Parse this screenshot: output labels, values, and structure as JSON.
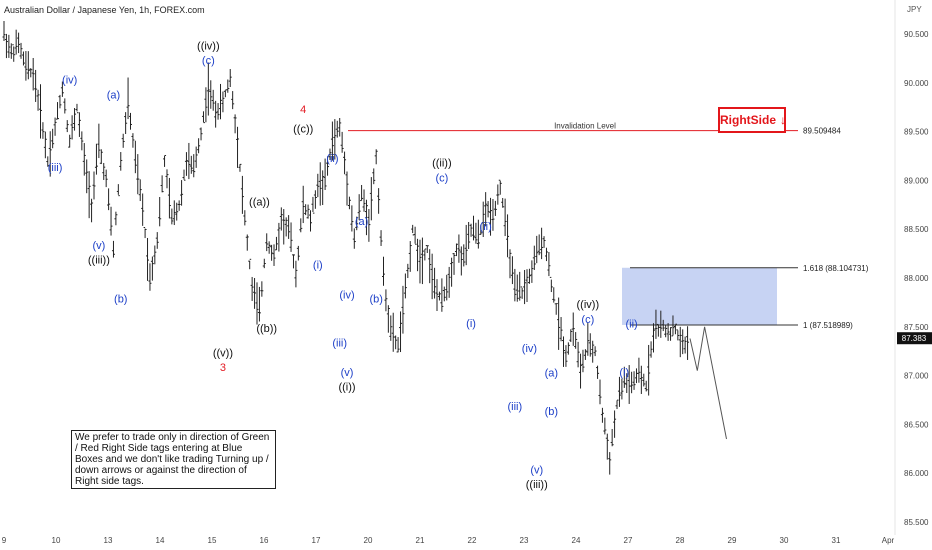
{
  "chart_data": {
    "type": "candlestick",
    "title": "Australian Dollar / Japanese Yen, 1h, FOREX.com",
    "currency": "JPY",
    "ylim": [
      85.45,
      90.65
    ],
    "y_ticks": [
      "90.500",
      "90.000",
      "89.500",
      "89.000",
      "88.500",
      "88.000",
      "87.500",
      "87.000",
      "86.500",
      "86.000",
      "85.500"
    ],
    "x_ticks": [
      "9",
      "10",
      "13",
      "14",
      "15",
      "16",
      "17",
      "20",
      "21",
      "22",
      "23",
      "24",
      "27",
      "28",
      "29",
      "30",
      "31",
      "Apr"
    ],
    "price_path": [
      [
        0,
        90.5
      ],
      [
        1,
        90.3
      ],
      [
        2,
        90.4
      ],
      [
        3,
        90.15
      ],
      [
        4,
        90.1
      ],
      [
        5,
        89.7
      ],
      [
        6,
        89.2
      ],
      [
        7,
        89.55
      ],
      [
        8,
        89.95
      ],
      [
        9,
        89.4
      ],
      [
        10,
        89.75
      ],
      [
        11,
        89.2
      ],
      [
        12,
        88.75
      ],
      [
        13,
        89.35
      ],
      [
        14,
        89.0
      ],
      [
        15,
        88.3
      ],
      [
        16,
        89.2
      ],
      [
        17,
        89.8
      ],
      [
        18,
        89.2
      ],
      [
        19,
        88.7
      ],
      [
        20,
        88.0
      ],
      [
        21,
        88.4
      ],
      [
        22,
        89.2
      ],
      [
        23,
        88.6
      ],
      [
        24,
        88.75
      ],
      [
        25,
        89.2
      ],
      [
        26,
        89.1
      ],
      [
        27,
        89.5
      ],
      [
        28,
        89.95
      ],
      [
        29,
        89.7
      ],
      [
        30,
        89.8
      ],
      [
        31,
        90.05
      ],
      [
        32,
        89.4
      ],
      [
        33,
        88.6
      ],
      [
        34,
        87.9
      ],
      [
        35,
        87.65
      ],
      [
        36,
        88.4
      ],
      [
        37,
        88.2
      ],
      [
        38,
        88.6
      ],
      [
        39,
        88.5
      ],
      [
        40,
        88.05
      ],
      [
        41,
        88.75
      ],
      [
        42,
        88.6
      ],
      [
        43,
        88.95
      ],
      [
        44,
        89.0
      ],
      [
        45,
        89.4
      ],
      [
        46,
        89.55
      ],
      [
        47,
        89.0
      ],
      [
        48,
        88.4
      ],
      [
        49,
        88.85
      ],
      [
        50,
        88.6
      ],
      [
        51,
        89.25
      ],
      [
        52,
        88.0
      ],
      [
        53,
        87.45
      ],
      [
        54,
        87.3
      ],
      [
        55,
        87.85
      ],
      [
        56,
        88.5
      ],
      [
        57,
        88.2
      ],
      [
        58,
        88.3
      ],
      [
        59,
        87.9
      ],
      [
        60,
        87.75
      ],
      [
        61,
        88.0
      ],
      [
        62,
        88.3
      ],
      [
        63,
        88.2
      ],
      [
        64,
        88.5
      ],
      [
        65,
        88.4
      ],
      [
        66,
        88.7
      ],
      [
        67,
        88.65
      ],
      [
        68,
        88.95
      ],
      [
        69,
        88.4
      ],
      [
        70,
        87.85
      ],
      [
        71,
        87.85
      ],
      [
        72,
        88.0
      ],
      [
        73,
        88.25
      ],
      [
        74,
        88.4
      ],
      [
        75,
        87.95
      ],
      [
        76,
        87.55
      ],
      [
        77,
        87.2
      ],
      [
        78,
        87.5
      ],
      [
        79,
        87.05
      ],
      [
        80,
        87.3
      ],
      [
        81,
        87.25
      ],
      [
        82,
        86.6
      ],
      [
        83,
        86.15
      ],
      [
        84,
        86.7
      ],
      [
        85,
        86.95
      ],
      [
        86,
        86.9
      ],
      [
        87,
        87.0
      ],
      [
        88,
        86.9
      ],
      [
        89,
        87.45
      ],
      [
        90,
        87.5
      ],
      [
        91,
        87.45
      ],
      [
        92,
        87.47
      ],
      [
        93,
        87.3
      ],
      [
        94,
        87.38
      ]
    ],
    "last_price": "87.383",
    "levels": [
      {
        "label": "89.509484",
        "value": 89.509484,
        "color": "#e31b23",
        "caption": "Invalidation Level"
      },
      {
        "label": "1.618 (88.104731)",
        "value": 88.104731,
        "color": "#333333"
      },
      {
        "label": "1 (87.518989)",
        "value": 87.518989,
        "color": "#333333"
      }
    ],
    "blue_box": {
      "y_high": 88.104731,
      "y_low": 87.518989
    },
    "labels": [
      {
        "text": "(iv)",
        "color": "#1e40c8",
        "i": 9,
        "v": 89.95,
        "pos": "above"
      },
      {
        "text": "(iii)",
        "color": "#1e40c8",
        "i": 7,
        "v": 89.2,
        "pos": "below"
      },
      {
        "text": "(v)",
        "color": "#1e40c8",
        "i": 13,
        "v": 88.4,
        "pos": "below"
      },
      {
        "text": "((iii))",
        "color": "#111111",
        "i": 13,
        "v": 88.25,
        "pos": "below2"
      },
      {
        "text": "(a)",
        "color": "#1e40c8",
        "i": 15,
        "v": 89.8,
        "pos": "above"
      },
      {
        "text": "(b)",
        "color": "#1e40c8",
        "i": 16,
        "v": 87.85,
        "pos": "below"
      },
      {
        "text": "(c)",
        "color": "#1e40c8",
        "i": 28,
        "v": 90.15,
        "pos": "above"
      },
      {
        "text": "((iv))",
        "color": "#111111",
        "i": 28,
        "v": 90.3,
        "pos": "above"
      },
      {
        "text": "((v))",
        "color": "#111111",
        "i": 30,
        "v": 87.3,
        "pos": "below"
      },
      {
        "text": "3",
        "color": "#e31b23",
        "i": 30,
        "v": 87.15,
        "pos": "below"
      },
      {
        "text": "((a))",
        "color": "#111111",
        "i": 35,
        "v": 88.7,
        "pos": "above"
      },
      {
        "text": "((b))",
        "color": "#111111",
        "i": 36,
        "v": 87.55,
        "pos": "below"
      },
      {
        "text": "((c))",
        "color": "#111111",
        "i": 41,
        "v": 89.45,
        "pos": "above"
      },
      {
        "text": "4",
        "color": "#e31b23",
        "i": 41,
        "v": 89.65,
        "pos": "above"
      },
      {
        "text": "(i)",
        "color": "#1e40c8",
        "i": 43,
        "v": 88.2,
        "pos": "below"
      },
      {
        "text": "(ii)",
        "color": "#1e40c8",
        "i": 45,
        "v": 89.15,
        "pos": "above"
      },
      {
        "text": "(iii)",
        "color": "#1e40c8",
        "i": 46,
        "v": 87.4,
        "pos": "below"
      },
      {
        "text": "(iv)",
        "color": "#1e40c8",
        "i": 47,
        "v": 87.75,
        "pos": "above"
      },
      {
        "text": "(v)",
        "color": "#1e40c8",
        "i": 47,
        "v": 87.1,
        "pos": "below"
      },
      {
        "text": "((i))",
        "color": "#111111",
        "i": 47,
        "v": 86.95,
        "pos": "below"
      },
      {
        "text": "(a)",
        "color": "#1e40c8",
        "i": 49,
        "v": 88.5,
        "pos": "above"
      },
      {
        "text": "(b)",
        "color": "#1e40c8",
        "i": 51,
        "v": 87.85,
        "pos": "below"
      },
      {
        "text": "(c)",
        "color": "#1e40c8",
        "i": 60,
        "v": 88.95,
        "pos": "above"
      },
      {
        "text": "((ii))",
        "color": "#111111",
        "i": 60,
        "v": 89.1,
        "pos": "above"
      },
      {
        "text": "(i)",
        "color": "#1e40c8",
        "i": 64,
        "v": 87.6,
        "pos": "below"
      },
      {
        "text": "(ii)",
        "color": "#1e40c8",
        "i": 66,
        "v": 88.45,
        "pos": "above"
      },
      {
        "text": "(iii)",
        "color": "#1e40c8",
        "i": 70,
        "v": 86.75,
        "pos": "below"
      },
      {
        "text": "(iv)",
        "color": "#1e40c8",
        "i": 72,
        "v": 87.2,
        "pos": "above"
      },
      {
        "text": "(v)",
        "color": "#1e40c8",
        "i": 73,
        "v": 86.1,
        "pos": "below"
      },
      {
        "text": "((iii))",
        "color": "#111111",
        "i": 73,
        "v": 85.95,
        "pos": "below"
      },
      {
        "text": "(a)",
        "color": "#1e40c8",
        "i": 75,
        "v": 86.95,
        "pos": "above"
      },
      {
        "text": "(b)",
        "color": "#1e40c8",
        "i": 75,
        "v": 86.7,
        "pos": "below"
      },
      {
        "text": "(c)",
        "color": "#1e40c8",
        "i": 80,
        "v": 87.5,
        "pos": "above"
      },
      {
        "text": "((iv))",
        "color": "#111111",
        "i": 80,
        "v": 87.65,
        "pos": "above"
      },
      {
        "text": "(ii)",
        "color": "#1e40c8",
        "i": 86,
        "v": 87.45,
        "pos": "above"
      },
      {
        "text": "(i)",
        "color": "#1e40c8",
        "i": 85,
        "v": 87.1,
        "pos": "below"
      }
    ],
    "projection": [
      [
        94,
        87.38
      ],
      [
        95,
        87.05
      ],
      [
        96,
        87.5
      ],
      [
        99,
        86.35
      ]
    ],
    "grid": false
  },
  "badge": {
    "text": "RightSide",
    "arrow": "↓",
    "color": "#e3161b"
  },
  "note": "We prefer to trade only in direction of Green / Red Right Side tags entering at Blue Boxes and we don't like trading Turning up / down arrows or against the direction of Right side tags."
}
